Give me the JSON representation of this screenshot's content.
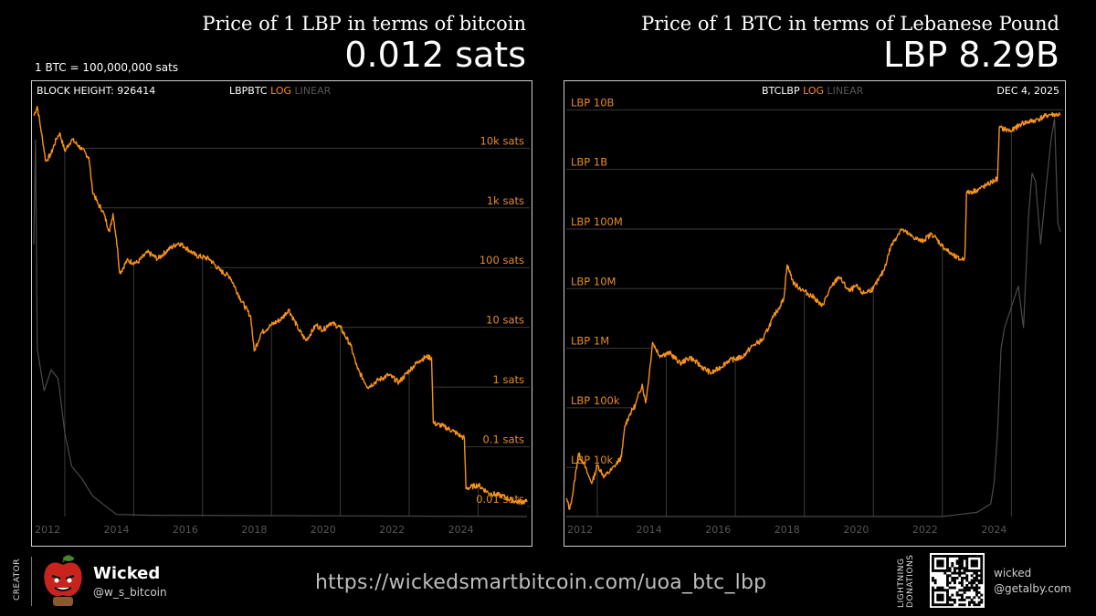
{
  "header": {
    "left_title": "Price of 1 LBP in terms of bitcoin",
    "left_value": "0.012 sats",
    "left_note": "1 BTC = 100,000,000 sats",
    "right_title": "Price of 1 BTC in terms of Lebanese Pound",
    "right_value": "LBP 8.29B"
  },
  "left_panel": {
    "block_height": "BLOCK HEIGHT: 926414",
    "ticker": "LBPBTC",
    "log_label": "LOG",
    "linear_label": "LINEAR"
  },
  "right_panel": {
    "ticker": "BTCLBP",
    "log_label": "LOG",
    "linear_label": "LINEAR",
    "date": "DEC 4, 2025"
  },
  "footer": {
    "creator_label": "CREATOR",
    "name": "Wicked",
    "handle": "@w_s_bitcoin",
    "url": "https://wickedsmartbitcoin.com/uoa_btc_lbp",
    "donation_label": "LIGHTNING DONATIONS",
    "lightning_line1": "wicked",
    "lightning_line2": "@getalby.com"
  },
  "colors": {
    "accent": "#f7931a",
    "label": "#e38a2a",
    "grid": "#3a3a3a",
    "linear": "#4a4a4a"
  },
  "chart_data": [
    {
      "type": "line",
      "yscale": "log",
      "ylabel_unit": "sats",
      "y_ticks": [
        {
          "value": 10000,
          "label": "10k sats"
        },
        {
          "value": 1000,
          "label": "1k sats"
        },
        {
          "value": 100,
          "label": "100 sats"
        },
        {
          "value": 10,
          "label": "10 sats"
        },
        {
          "value": 1,
          "label": "1 sats"
        },
        {
          "value": 0.1,
          "label": "0.1 sats"
        },
        {
          "value": 0.01,
          "label": "0.01 sats"
        }
      ],
      "ylim": [
        0.0068,
        70000
      ],
      "xlim": [
        2011.6,
        2026.0
      ],
      "x_ticks": [
        2012,
        2014,
        2016,
        2018,
        2020,
        2022,
        2024
      ],
      "series": [
        {
          "scale": "log",
          "points": [
            [
              2011.6,
              35000
            ],
            [
              2011.7,
              50000
            ],
            [
              2011.8,
              22000
            ],
            [
              2011.95,
              6000
            ],
            [
              2012.1,
              8000
            ],
            [
              2012.25,
              14000
            ],
            [
              2012.35,
              18000
            ],
            [
              2012.5,
              9000
            ],
            [
              2012.7,
              14000
            ],
            [
              2012.9,
              11000
            ],
            [
              2013.0,
              9500
            ],
            [
              2013.2,
              7000
            ],
            [
              2013.3,
              2000
            ],
            [
              2013.45,
              1200
            ],
            [
              2013.6,
              900
            ],
            [
              2013.8,
              400
            ],
            [
              2013.9,
              800
            ],
            [
              2014.0,
              300
            ],
            [
              2014.1,
              80
            ],
            [
              2014.3,
              130
            ],
            [
              2014.6,
              120
            ],
            [
              2014.9,
              180
            ],
            [
              2015.2,
              140
            ],
            [
              2015.5,
              200
            ],
            [
              2015.8,
              260
            ],
            [
              2016.0,
              220
            ],
            [
              2016.3,
              160
            ],
            [
              2016.7,
              140
            ],
            [
              2017.0,
              90
            ],
            [
              2017.3,
              70
            ],
            [
              2017.6,
              30
            ],
            [
              2017.9,
              15
            ],
            [
              2018.0,
              4
            ],
            [
              2018.2,
              8
            ],
            [
              2018.5,
              11
            ],
            [
              2018.8,
              14
            ],
            [
              2019.0,
              20
            ],
            [
              2019.3,
              9
            ],
            [
              2019.5,
              6
            ],
            [
              2019.8,
              11
            ],
            [
              2020.0,
              9
            ],
            [
              2020.2,
              12
            ],
            [
              2020.5,
              10
            ],
            [
              2020.8,
              5
            ],
            [
              2021.0,
              2
            ],
            [
              2021.3,
              1
            ],
            [
              2021.6,
              1.3
            ],
            [
              2021.9,
              1.6
            ],
            [
              2022.2,
              1.2
            ],
            [
              2022.5,
              1.9
            ],
            [
              2022.8,
              2.8
            ],
            [
              2023.0,
              3.2
            ],
            [
              2023.15,
              3.1
            ],
            [
              2023.2,
              0.25
            ],
            [
              2023.5,
              0.22
            ],
            [
              2023.8,
              0.18
            ],
            [
              2024.0,
              0.15
            ],
            [
              2024.1,
              0.14
            ],
            [
              2024.15,
              0.02
            ],
            [
              2024.5,
              0.023
            ],
            [
              2024.8,
              0.017
            ],
            [
              2025.2,
              0.015
            ],
            [
              2025.6,
              0.012
            ],
            [
              2025.92,
              0.012
            ]
          ]
        },
        {
          "scale": "linear",
          "points": [
            [
              2011.6,
              0.65
            ],
            [
              2011.65,
              0.9
            ],
            [
              2011.7,
              0.4
            ],
            [
              2011.9,
              0.3
            ],
            [
              2012.1,
              0.35
            ],
            [
              2012.3,
              0.33
            ],
            [
              2012.35,
              0.3
            ],
            [
              2012.5,
              0.2
            ],
            [
              2012.7,
              0.12
            ],
            [
              2013.0,
              0.09
            ],
            [
              2013.3,
              0.05
            ],
            [
              2013.6,
              0.03
            ],
            [
              2014.0,
              0.005
            ],
            [
              2015.0,
              0.003
            ],
            [
              2025.92,
              0.0
            ]
          ]
        }
      ]
    },
    {
      "type": "line",
      "yscale": "log",
      "ylabel_prefix": "LBP",
      "y_ticks": [
        {
          "value": 10000000000,
          "label": "LBP 10B"
        },
        {
          "value": 1000000000,
          "label": "LBP 1B"
        },
        {
          "value": 100000000,
          "label": "LBP 100M"
        },
        {
          "value": 10000000,
          "label": "LBP 10M"
        },
        {
          "value": 1000000,
          "label": "LBP 1M"
        },
        {
          "value": 100000,
          "label": "LBP 100k"
        },
        {
          "value": 10000,
          "label": "LBP 10k"
        }
      ],
      "ylim": [
        1500,
        16000000000
      ],
      "xlim": [
        2011.6,
        2026.0
      ],
      "x_ticks": [
        2012,
        2014,
        2016,
        2018,
        2020,
        2022,
        2024
      ],
      "series": [
        {
          "scale": "log",
          "points": [
            [
              2011.6,
              3000
            ],
            [
              2011.7,
              2000
            ],
            [
              2011.8,
              4000
            ],
            [
              2011.95,
              17000
            ],
            [
              2012.1,
              12000
            ],
            [
              2012.25,
              7000
            ],
            [
              2012.35,
              5500
            ],
            [
              2012.5,
              11000
            ],
            [
              2012.7,
              7000
            ],
            [
              2012.9,
              9000
            ],
            [
              2013.0,
              10500
            ],
            [
              2013.2,
              15000
            ],
            [
              2013.3,
              50000
            ],
            [
              2013.45,
              80000
            ],
            [
              2013.6,
              110000
            ],
            [
              2013.8,
              250000
            ],
            [
              2013.9,
              120000
            ],
            [
              2014.0,
              340000
            ],
            [
              2014.1,
              1250000
            ],
            [
              2014.3,
              760000
            ],
            [
              2014.6,
              830000
            ],
            [
              2014.9,
              560000
            ],
            [
              2015.2,
              700000
            ],
            [
              2015.5,
              500000
            ],
            [
              2015.8,
              380000
            ],
            [
              2016.0,
              450000
            ],
            [
              2016.3,
              620000
            ],
            [
              2016.7,
              710000
            ],
            [
              2017.0,
              1100000
            ],
            [
              2017.3,
              1400000
            ],
            [
              2017.6,
              3300000
            ],
            [
              2017.9,
              6600000
            ],
            [
              2018.0,
              25000000
            ],
            [
              2018.2,
              12000000
            ],
            [
              2018.5,
              9000000
            ],
            [
              2018.8,
              7000000
            ],
            [
              2019.0,
              5000000
            ],
            [
              2019.3,
              11000000
            ],
            [
              2019.5,
              16000000
            ],
            [
              2019.8,
              9000000
            ],
            [
              2020.0,
              11000000
            ],
            [
              2020.2,
              8300000
            ],
            [
              2020.5,
              10000000
            ],
            [
              2020.8,
              20000000
            ],
            [
              2021.0,
              50000000
            ],
            [
              2021.3,
              100000000
            ],
            [
              2021.6,
              76000000
            ],
            [
              2021.9,
              62000000
            ],
            [
              2022.2,
              83000000
            ],
            [
              2022.5,
              52000000
            ],
            [
              2022.8,
              36000000
            ],
            [
              2023.0,
              31000000
            ],
            [
              2023.15,
              32000000
            ],
            [
              2023.2,
              400000000
            ],
            [
              2023.5,
              450000000
            ],
            [
              2023.8,
              550000000
            ],
            [
              2024.0,
              650000000
            ],
            [
              2024.1,
              700000000
            ],
            [
              2024.15,
              5000000000
            ],
            [
              2024.5,
              4400000000
            ],
            [
              2024.8,
              5900000000
            ],
            [
              2025.2,
              6700000000
            ],
            [
              2025.6,
              8300000000
            ],
            [
              2025.92,
              8290000000
            ]
          ]
        },
        {
          "scale": "linear",
          "points": [
            [
              2011.6,
              0.0
            ],
            [
              2022.5,
              0.0
            ],
            [
              2023.0,
              0.005
            ],
            [
              2023.5,
              0.01
            ],
            [
              2023.9,
              0.03
            ],
            [
              2024.0,
              0.08
            ],
            [
              2024.1,
              0.2
            ],
            [
              2024.2,
              0.4
            ],
            [
              2024.3,
              0.45
            ],
            [
              2024.5,
              0.5
            ],
            [
              2024.7,
              0.55
            ],
            [
              2024.85,
              0.45
            ],
            [
              2025.0,
              0.72
            ],
            [
              2025.1,
              0.82
            ],
            [
              2025.2,
              0.8
            ],
            [
              2025.35,
              0.65
            ],
            [
              2025.5,
              0.78
            ],
            [
              2025.65,
              0.9
            ],
            [
              2025.75,
              0.95
            ],
            [
              2025.85,
              0.7
            ],
            [
              2025.92,
              0.68
            ]
          ]
        }
      ]
    }
  ]
}
